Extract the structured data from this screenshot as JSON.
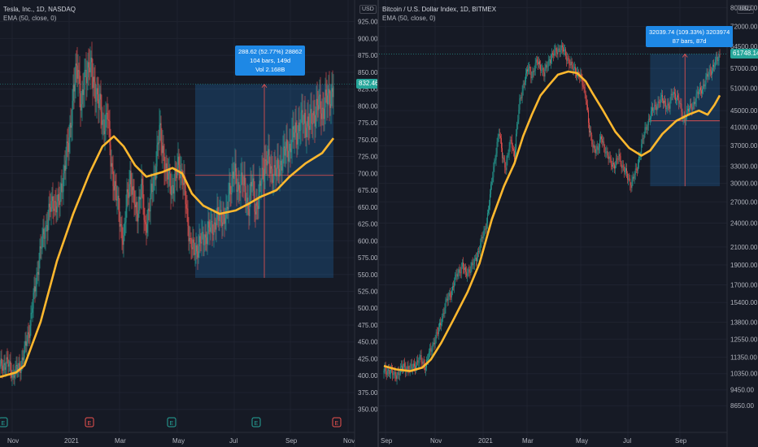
{
  "colors": {
    "up": "#26a69a",
    "down": "#ef5350",
    "ema": "#ffb82e",
    "measure": "#1e88e5"
  },
  "chart_data": [
    {
      "type": "candlestick",
      "title": "Tesla, Inc., 1D, NASDAQ",
      "indicator": "EMA (50, close, 0)",
      "price_scale": "linear",
      "ylim": [
        340,
        945
      ],
      "y_ticks": [
        "925.00",
        "900.00",
        "875.00",
        "850.00",
        "825.00",
        "800.00",
        "775.00",
        "750.00",
        "725.00",
        "700.00",
        "675.00",
        "650.00",
        "625.00",
        "600.00",
        "575.00",
        "550.00",
        "525.00",
        "500.00",
        "475.00",
        "450.00",
        "425.00",
        "400.00",
        "375.00",
        "350.00"
      ],
      "x_ticks": [
        "Nov",
        "2021",
        "Mar",
        "May",
        "Jul",
        "Sep",
        "Nov"
      ],
      "close_points": [
        [
          0,
          413
        ],
        [
          8,
          420
        ],
        [
          16,
          403
        ],
        [
          24,
          412
        ],
        [
          30,
          435
        ],
        [
          36,
          470
        ],
        [
          42,
          520
        ],
        [
          48,
          575
        ],
        [
          54,
          610
        ],
        [
          60,
          640
        ],
        [
          66,
          660
        ],
        [
          72,
          650
        ],
        [
          78,
          700
        ],
        [
          84,
          740
        ],
        [
          90,
          820
        ],
        [
          96,
          860
        ],
        [
          100,
          800
        ],
        [
          106,
          850
        ],
        [
          110,
          870
        ],
        [
          114,
          830
        ],
        [
          120,
          820
        ],
        [
          126,
          770
        ],
        [
          132,
          790
        ],
        [
          136,
          720
        ],
        [
          140,
          690
        ],
        [
          146,
          640
        ],
        [
          152,
          600
        ],
        [
          156,
          660
        ],
        [
          160,
          700
        ],
        [
          164,
          660
        ],
        [
          168,
          640
        ],
        [
          174,
          680
        ],
        [
          178,
          620
        ],
        [
          184,
          650
        ],
        [
          190,
          700
        ],
        [
          196,
          760
        ],
        [
          200,
          740
        ],
        [
          204,
          700
        ],
        [
          208,
          690
        ],
        [
          212,
          680
        ],
        [
          216,
          690
        ],
        [
          220,
          720
        ],
        [
          226,
          680
        ],
        [
          230,
          640
        ],
        [
          234,
          595
        ],
        [
          238,
          585
        ],
        [
          242,
          590
        ],
        [
          248,
          600
        ],
        [
          254,
          610
        ],
        [
          260,
          620
        ],
        [
          266,
          630
        ],
        [
          272,
          640
        ],
        [
          278,
          630
        ],
        [
          282,
          680
        ],
        [
          288,
          700
        ],
        [
          292,
          680
        ],
        [
          296,
          690
        ],
        [
          300,
          680
        ],
        [
          306,
          650
        ],
        [
          310,
          690
        ],
        [
          314,
          650
        ],
        [
          318,
          660
        ],
        [
          322,
          700
        ],
        [
          328,
          720
        ],
        [
          334,
          705
        ],
        [
          340,
          700
        ],
        [
          346,
          720
        ],
        [
          350,
          730
        ],
        [
          356,
          740
        ],
        [
          362,
          760
        ],
        [
          368,
          770
        ],
        [
          374,
          780
        ],
        [
          380,
          770
        ],
        [
          386,
          790
        ],
        [
          392,
          800
        ],
        [
          396,
          795
        ],
        [
          400,
          805
        ],
        [
          404,
          810
        ],
        [
          410,
          832
        ]
      ],
      "ema_points": [
        [
          0,
          398
        ],
        [
          20,
          405
        ],
        [
          30,
          415
        ],
        [
          50,
          480
        ],
        [
          70,
          570
        ],
        [
          90,
          640
        ],
        [
          110,
          700
        ],
        [
          126,
          740
        ],
        [
          140,
          755
        ],
        [
          152,
          740
        ],
        [
          166,
          712
        ],
        [
          180,
          695
        ],
        [
          200,
          702
        ],
        [
          212,
          708
        ],
        [
          224,
          700
        ],
        [
          236,
          670
        ],
        [
          250,
          652
        ],
        [
          270,
          640
        ],
        [
          290,
          645
        ],
        [
          306,
          655
        ],
        [
          320,
          665
        ],
        [
          340,
          675
        ],
        [
          356,
          695
        ],
        [
          376,
          715
        ],
        [
          396,
          730
        ],
        [
          410,
          752
        ]
      ],
      "current_price": "832.46",
      "measure": {
        "price_start": 545,
        "price_end": 832,
        "target_price": 697,
        "label_lines": [
          "288.62 (52.77%) 28862",
          "104 bars, 149d",
          "Vol 2.168B"
        ]
      }
    },
    {
      "type": "candlestick",
      "title": "Bitcoin / U.S. Dollar Index, 1D, BITMEX",
      "indicator": "EMA (50, close, 0)",
      "price_scale": "log",
      "ylim": [
        7800,
        82000
      ],
      "y_ticks": [
        "80000.00",
        "72000.00",
        "64500.00",
        "57000.00",
        "51000.00",
        "45000.00",
        "41000.00",
        "37000.00",
        "33000.00",
        "30000.00",
        "27000.00",
        "24000.00",
        "21000.00",
        "19000.00",
        "17000.00",
        "15400.00",
        "13800.00",
        "12550.00",
        "11350.00",
        "10350.00",
        "9450.00",
        "8650.00"
      ],
      "x_ticks": [
        "Sep",
        "Nov",
        "2021",
        "Mar",
        "May",
        "Jul",
        "Sep"
      ],
      "close_points": [
        [
          0,
          10400
        ],
        [
          6,
          10600
        ],
        [
          12,
          10200
        ],
        [
          18,
          10500
        ],
        [
          24,
          10800
        ],
        [
          30,
          10600
        ],
        [
          36,
          10900
        ],
        [
          42,
          11200
        ],
        [
          48,
          10800
        ],
        [
          52,
          11500
        ],
        [
          58,
          12500
        ],
        [
          62,
          13000
        ],
        [
          68,
          14500
        ],
        [
          72,
          15500
        ],
        [
          78,
          16500
        ],
        [
          84,
          18000
        ],
        [
          90,
          19000
        ],
        [
          94,
          18000
        ],
        [
          100,
          18800
        ],
        [
          104,
          19200
        ],
        [
          110,
          21000
        ],
        [
          116,
          23000
        ],
        [
          120,
          26000
        ],
        [
          124,
          30000
        ],
        [
          128,
          35000
        ],
        [
          132,
          40000
        ],
        [
          136,
          35000
        ],
        [
          140,
          33000
        ],
        [
          146,
          38000
        ],
        [
          150,
          35000
        ],
        [
          156,
          47000
        ],
        [
          160,
          52000
        ],
        [
          166,
          57000
        ],
        [
          170,
          55000
        ],
        [
          176,
          59000
        ],
        [
          180,
          58000
        ],
        [
          184,
          55000
        ],
        [
          190,
          60000
        ],
        [
          196,
          62000
        ],
        [
          202,
          64000
        ],
        [
          206,
          63000
        ],
        [
          212,
          60000
        ],
        [
          216,
          57000
        ],
        [
          222,
          56000
        ],
        [
          226,
          54000
        ],
        [
          232,
          49000
        ],
        [
          236,
          40000
        ],
        [
          240,
          37000
        ],
        [
          246,
          36000
        ],
        [
          250,
          39000
        ],
        [
          256,
          35000
        ],
        [
          260,
          34000
        ],
        [
          266,
          33000
        ],
        [
          270,
          35000
        ],
        [
          274,
          33000
        ],
        [
          280,
          31000
        ],
        [
          284,
          30000
        ],
        [
          290,
          32000
        ],
        [
          296,
          37000
        ],
        [
          300,
          40000
        ],
        [
          306,
          44000
        ],
        [
          312,
          46000
        ],
        [
          318,
          48000
        ],
        [
          322,
          47000
        ],
        [
          328,
          46000
        ],
        [
          332,
          50000
        ],
        [
          338,
          48000
        ],
        [
          344,
          43000
        ],
        [
          350,
          45000
        ],
        [
          356,
          47000
        ],
        [
          362,
          50000
        ],
        [
          368,
          52000
        ],
        [
          374,
          56000
        ],
        [
          380,
          58000
        ],
        [
          386,
          61748
        ]
      ],
      "ema_points": [
        [
          0,
          10800
        ],
        [
          14,
          10600
        ],
        [
          30,
          10500
        ],
        [
          44,
          10700
        ],
        [
          54,
          11200
        ],
        [
          66,
          12300
        ],
        [
          80,
          14000
        ],
        [
          96,
          16300
        ],
        [
          110,
          19200
        ],
        [
          124,
          24500
        ],
        [
          138,
          29500
        ],
        [
          150,
          33500
        ],
        [
          160,
          39000
        ],
        [
          170,
          44000
        ],
        [
          180,
          49000
        ],
        [
          190,
          52000
        ],
        [
          200,
          55000
        ],
        [
          212,
          56000
        ],
        [
          222,
          55500
        ],
        [
          232,
          53000
        ],
        [
          240,
          49500
        ],
        [
          252,
          45000
        ],
        [
          266,
          40000
        ],
        [
          282,
          36500
        ],
        [
          296,
          35000
        ],
        [
          306,
          36000
        ],
        [
          320,
          39500
        ],
        [
          336,
          42500
        ],
        [
          350,
          44000
        ],
        [
          362,
          45000
        ],
        [
          372,
          44000
        ],
        [
          380,
          46500
        ],
        [
          386,
          49000
        ]
      ],
      "current_price": "61748.14",
      "measure": {
        "price_start": 29500,
        "price_end": 61750,
        "target_price": 42500,
        "label_lines": [
          "32039.74 (109.33%) 3203974",
          "87 bars, 87d"
        ]
      }
    }
  ],
  "left_axis_unit": "USD",
  "right_axis_unit": "USD"
}
